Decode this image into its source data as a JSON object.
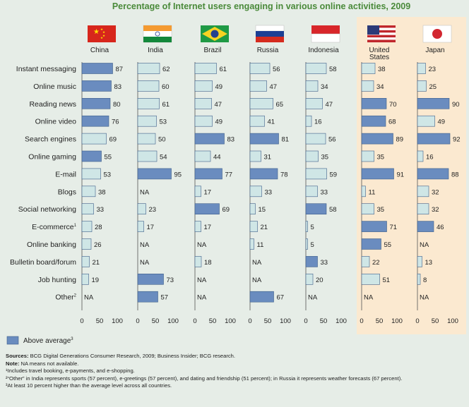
{
  "chart_data": {
    "type": "bar",
    "title": "Percentage of Internet users engaging in various online activities, 2009",
    "categories": [
      "Instant messaging",
      "Online music",
      "Reading news",
      "Online video",
      "Search engines",
      "Online gaming",
      "E-mail",
      "Blogs",
      "Social networking",
      "E-commerce",
      "Online banking",
      "Bulletin board/forum",
      "Job hunting",
      "Other"
    ],
    "category_sup": {
      "E-commerce": "1",
      "Other": "2"
    },
    "xlim": [
      0,
      100
    ],
    "ticks": [
      "0",
      "50",
      "100"
    ],
    "series": [
      {
        "name": "China",
        "values": [
          87,
          83,
          80,
          76,
          69,
          55,
          53,
          38,
          33,
          28,
          26,
          21,
          19,
          null
        ],
        "above": [
          true,
          true,
          true,
          true,
          false,
          true,
          false,
          false,
          false,
          false,
          false,
          false,
          false,
          false
        ]
      },
      {
        "name": "India",
        "values": [
          62,
          60,
          61,
          53,
          50,
          54,
          95,
          null,
          23,
          17,
          null,
          null,
          73,
          57
        ],
        "above": [
          false,
          false,
          false,
          false,
          false,
          false,
          true,
          false,
          false,
          false,
          false,
          false,
          true,
          true
        ]
      },
      {
        "name": "Brazil",
        "values": [
          61,
          49,
          47,
          49,
          83,
          44,
          77,
          17,
          69,
          17,
          null,
          18,
          null,
          null
        ],
        "above": [
          false,
          false,
          false,
          false,
          true,
          false,
          true,
          false,
          true,
          false,
          false,
          false,
          false,
          false
        ]
      },
      {
        "name": "Russia",
        "values": [
          56,
          47,
          65,
          41,
          81,
          31,
          78,
          33,
          15,
          21,
          11,
          null,
          null,
          67
        ],
        "above": [
          false,
          false,
          false,
          false,
          true,
          false,
          true,
          false,
          false,
          false,
          false,
          false,
          false,
          true
        ]
      },
      {
        "name": "Indonesia",
        "values": [
          58,
          34,
          47,
          16,
          56,
          35,
          59,
          33,
          58,
          5,
          5,
          33,
          20,
          null
        ],
        "above": [
          false,
          false,
          false,
          false,
          false,
          false,
          false,
          false,
          true,
          false,
          false,
          true,
          false,
          false
        ]
      },
      {
        "name": "United States",
        "values": [
          38,
          34,
          70,
          68,
          89,
          35,
          91,
          11,
          35,
          71,
          55,
          22,
          51,
          null
        ],
        "above": [
          false,
          false,
          true,
          true,
          true,
          false,
          true,
          false,
          false,
          true,
          true,
          false,
          false,
          false
        ]
      },
      {
        "name": "Japan",
        "values": [
          23,
          25,
          90,
          49,
          92,
          16,
          88,
          32,
          32,
          46,
          null,
          13,
          8,
          null
        ],
        "above": [
          false,
          false,
          true,
          false,
          true,
          false,
          true,
          false,
          false,
          true,
          false,
          false,
          false,
          false
        ]
      }
    ],
    "na_label": "NA",
    "legend": {
      "label": "Above average",
      "sup": "3"
    },
    "colors": {
      "above": "#6a8cbf",
      "normal": "#cfe6e6",
      "bar_stroke": "#3f5f8a",
      "highlight_bg": "#fbe9d0",
      "title": "#4a8a3a"
    }
  },
  "notes": {
    "sources_label": "Sources:",
    "sources": "BCG Digital Generations Consumer Research, 2009; Business Insider; BCG research.",
    "note_label": "Note:",
    "note": "NA means not available.",
    "fn1": "¹Includes travel booking, e-payments, and e-shopping.",
    "fn2": "²“Other” in India represents sports (57 percent), e-greetings (57 percent), and dating and friendship (51 percent); in Russia it represents weather forecasts (67 percent).",
    "fn3": "³At least 10 percent higher than the average level across all countries."
  }
}
